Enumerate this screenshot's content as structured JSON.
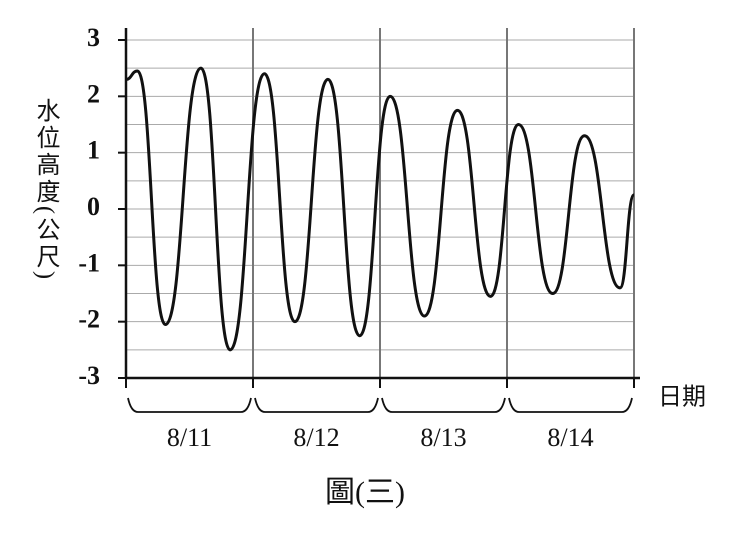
{
  "chart_data": {
    "type": "line",
    "y_label": "水位高度(公尺)",
    "x_label": "日期",
    "caption": "圖(三)",
    "categories": [
      "8/11",
      "8/12",
      "8/13",
      "8/14"
    ],
    "x": [
      0,
      0.09,
      0.31,
      0.59,
      0.82,
      1.09,
      1.33,
      1.59,
      1.84,
      2.08,
      2.35,
      2.61,
      2.87,
      3.09,
      3.36,
      3.61,
      3.89,
      4
    ],
    "series": [
      {
        "color": "#111111",
        "values": [
          2.3,
          2.45,
          -2.05,
          2.5,
          -2.5,
          2.4,
          -2.0,
          2.3,
          -2.25,
          2.0,
          -1.9,
          1.75,
          -1.55,
          1.5,
          -1.5,
          1.3,
          -1.4,
          0.25
        ]
      }
    ],
    "xlim": [
      0,
      4
    ],
    "xticks": [
      0,
      1,
      2,
      3,
      4
    ],
    "ylim": [
      -3,
      3
    ],
    "yticks": [
      3,
      2,
      1,
      0,
      -1,
      -2,
      -3
    ],
    "minor_yticks": [
      2.5,
      1.5,
      0.5,
      -0.5,
      -1.5,
      -2.5
    ],
    "grid": true
  }
}
